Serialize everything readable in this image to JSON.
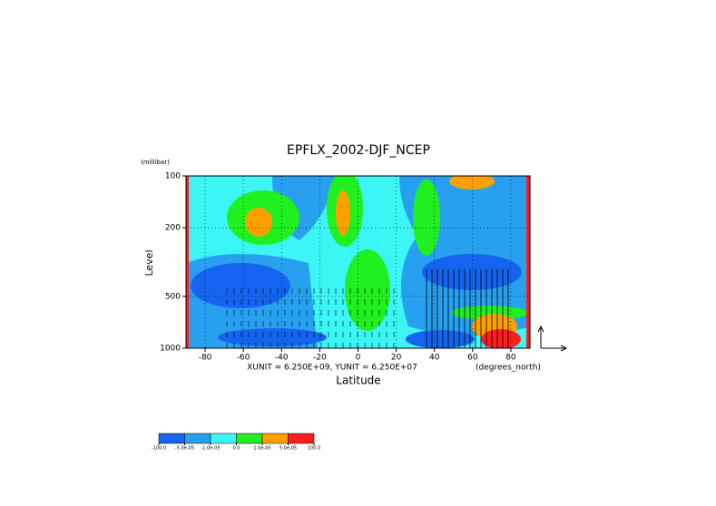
{
  "chart_data": {
    "type": "contour",
    "title": "EPFLX_2002-DJF_NCEP",
    "x_label": "Latitude",
    "x_unit": "(degrees_north)",
    "y_label": "Level",
    "y_unit": "(millibar)",
    "vector_units": "XUNIT = 6.250E+09, YUNIT = 6.250E+07",
    "xlim": [
      -90,
      90
    ],
    "xticks": [
      -80,
      -60,
      -40,
      -20,
      0,
      20,
      40,
      60,
      80
    ],
    "ylim": [
      1000,
      100
    ],
    "y_log": true,
    "yticks": [
      100,
      200,
      500,
      1000
    ],
    "levels": [
      {
        "value": -100,
        "label": "-100.0"
      },
      {
        "value": -5e-05,
        "label": "-5.0e-05"
      },
      {
        "value": -1e-05,
        "label": "-1.0e-05"
      },
      {
        "value": 0,
        "label": "0.0"
      },
      {
        "value": 1e-05,
        "label": "1.0e-05"
      },
      {
        "value": 5e-05,
        "label": "5.0e-05"
      },
      {
        "value": 100,
        "label": "100.0"
      }
    ],
    "colors": [
      "#1464f0",
      "#28a0f0",
      "#3cf5f5",
      "#20f020",
      "#ffa000",
      "#ff1e1e"
    ]
  }
}
